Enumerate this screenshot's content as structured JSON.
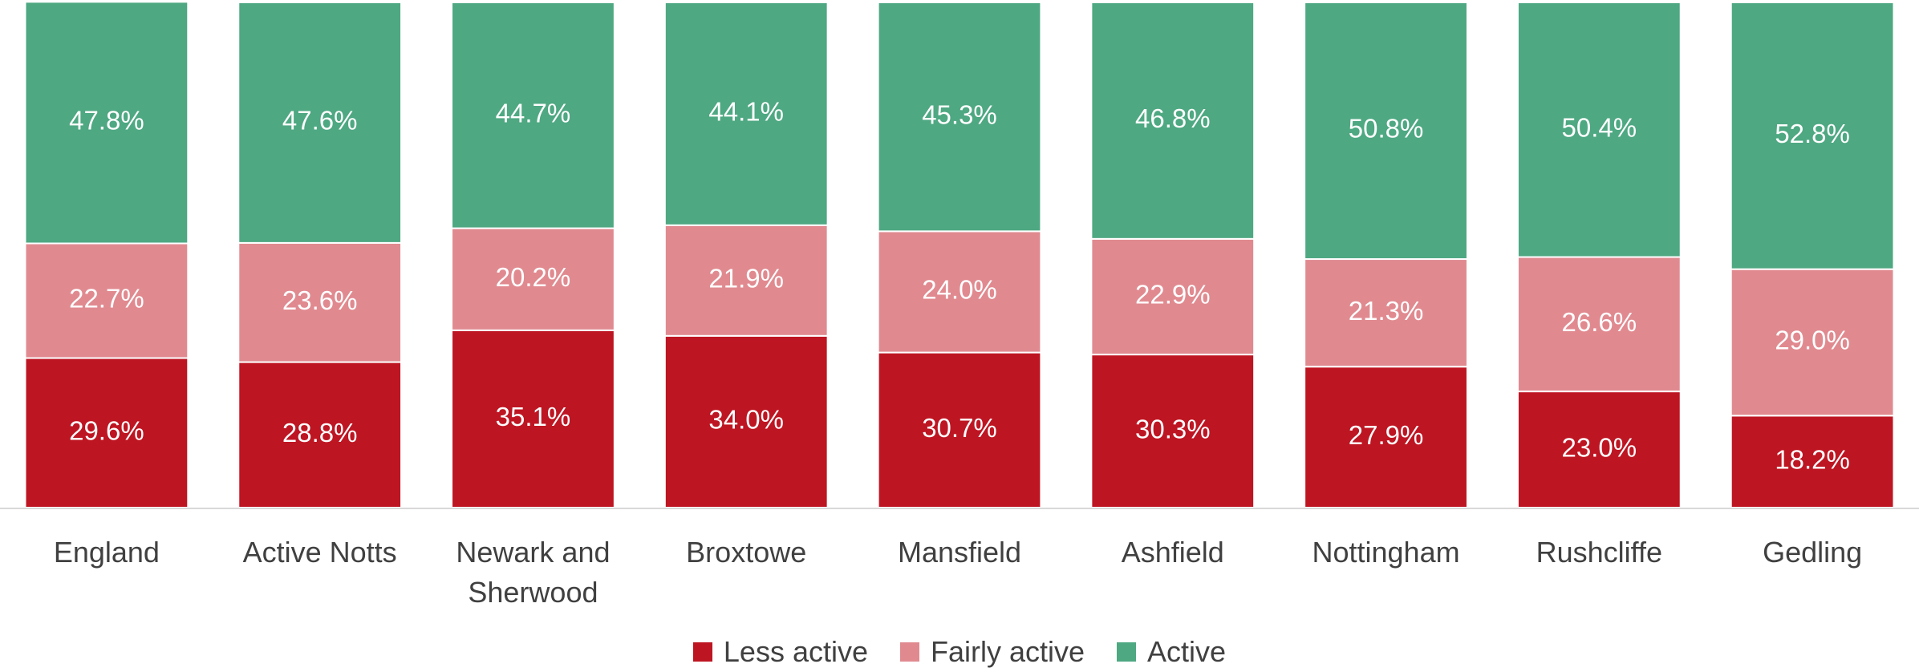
{
  "chart_data": {
    "type": "stacked_bar",
    "categories": [
      "England",
      "Active Notts",
      "Newark and Sherwood",
      "Broxtowe",
      "Mansfield",
      "Ashfield",
      "Nottingham",
      "Rushcliffe",
      "Gedling"
    ],
    "series": [
      {
        "name": "Less active",
        "color": "#be1522",
        "values": [
          29.6,
          28.8,
          35.1,
          34.0,
          30.7,
          30.3,
          27.9,
          23.0,
          18.2
        ],
        "value_labels": [
          "29.6%",
          "28.8%",
          "35.1%",
          "34.0%",
          "30.7%",
          "30.3%",
          "27.9%",
          "23.0%",
          "18.2%"
        ]
      },
      {
        "name": "Fairly active",
        "color": "#e08a90",
        "values": [
          22.7,
          23.6,
          20.2,
          21.9,
          24.0,
          22.9,
          21.3,
          26.6,
          29.0
        ],
        "value_labels": [
          "22.7%",
          "23.6%",
          "20.2%",
          "21.9%",
          "24.0%",
          "22.9%",
          "21.3%",
          "26.6%",
          "29.0%"
        ]
      },
      {
        "name": "Active",
        "color": "#4ea882",
        "values": [
          47.8,
          47.6,
          44.7,
          44.1,
          45.3,
          46.8,
          50.8,
          50.4,
          52.8
        ],
        "value_labels": [
          "47.8%",
          "47.6%",
          "44.7%",
          "44.1%",
          "45.3%",
          "46.8%",
          "50.8%",
          "50.4%",
          "52.8%"
        ]
      }
    ],
    "ylim": [
      0,
      100
    ],
    "legend": "bottom"
  }
}
